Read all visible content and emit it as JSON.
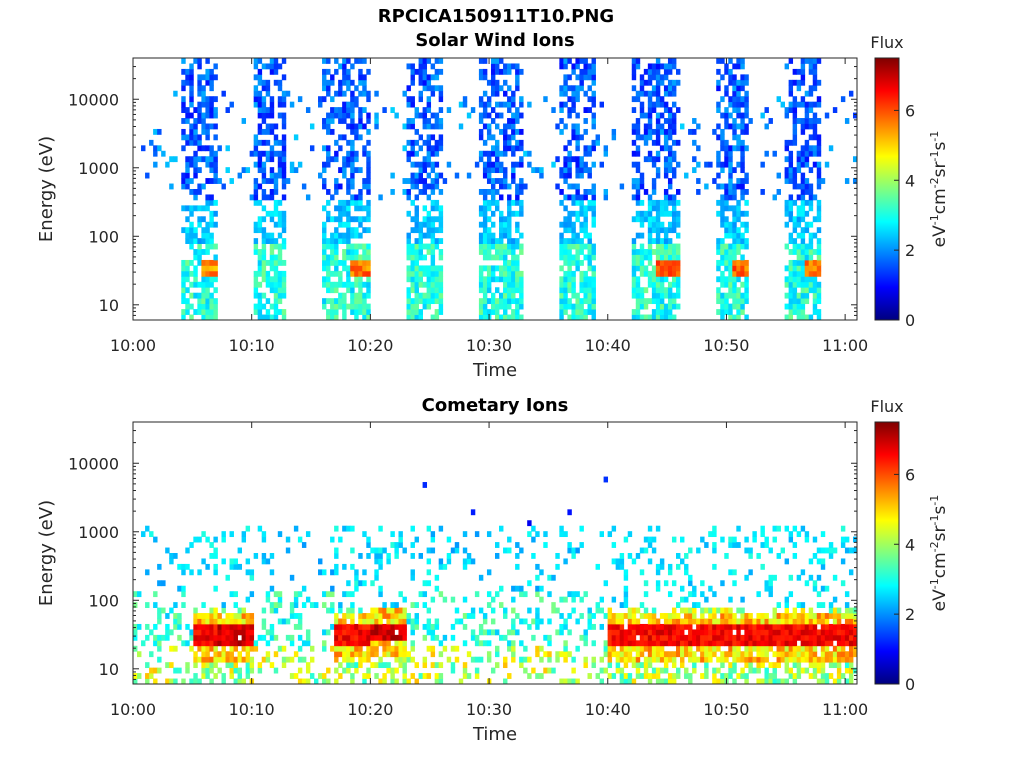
{
  "figure": {
    "title": "RPCICA150911T10.PNG"
  },
  "chart_data": [
    {
      "type": "heatmap",
      "title": "Solar Wind Ions",
      "xlabel": "Time",
      "ylabel": "Energy (eV)",
      "x_ticks": [
        "10:00",
        "10:10",
        "10:20",
        "10:30",
        "10:40",
        "10:50",
        "11:00"
      ],
      "y_ticks": [
        "10",
        "100",
        "1000",
        "10000"
      ],
      "y_scale": "log",
      "ylim": [
        6,
        40000
      ],
      "xlim": [
        "10:00",
        "11:01"
      ],
      "colorbar": {
        "label": "Flux",
        "unit": "eV-1cm-2sr-1s-1",
        "ticks": [
          "0",
          "2",
          "4",
          "6"
        ],
        "range": [
          0,
          7.5
        ],
        "colormap": "jet"
      },
      "features": [
        {
          "time_range": [
            "10:04",
            "10:07"
          ],
          "peak_energy_eV": 35,
          "peak_flux": 6.0
        },
        {
          "time_range": [
            "10:10",
            "10:13"
          ],
          "peak_energy_eV": 20,
          "peak_flux": 3.5
        },
        {
          "time_range": [
            "10:16",
            "10:20"
          ],
          "peak_energy_eV": 35,
          "peak_flux": 6.2
        },
        {
          "time_range": [
            "10:23",
            "10:26"
          ],
          "peak_energy_eV": 20,
          "peak_flux": 3.5
        },
        {
          "time_range": [
            "10:29",
            "10:33"
          ],
          "peak_energy_eV": 20,
          "peak_flux": 3.5
        },
        {
          "time_range": [
            "10:36",
            "10:39"
          ],
          "peak_energy_eV": 20,
          "peak_flux": 3.5
        },
        {
          "time_range": [
            "10:42",
            "10:46"
          ],
          "peak_energy_eV": 35,
          "peak_flux": 6.5
        },
        {
          "time_range": [
            "10:49",
            "10:52"
          ],
          "peak_energy_eV": 35,
          "peak_flux": 6.3
        },
        {
          "time_range": [
            "10:55",
            "10:58"
          ],
          "peak_energy_eV": 35,
          "peak_flux": 6.3
        }
      ]
    },
    {
      "type": "heatmap",
      "title": "Cometary Ions",
      "xlabel": "Time",
      "ylabel": "Energy (eV)",
      "x_ticks": [
        "10:00",
        "10:10",
        "10:20",
        "10:30",
        "10:40",
        "10:50",
        "11:00"
      ],
      "y_ticks": [
        "10",
        "100",
        "1000",
        "10000"
      ],
      "y_scale": "log",
      "ylim": [
        6,
        40000
      ],
      "xlim": [
        "10:00",
        "11:01"
      ],
      "colorbar": {
        "label": "Flux",
        "unit": "eV-1cm-2sr-1s-1",
        "ticks": [
          "0",
          "2",
          "4",
          "6"
        ],
        "range": [
          0,
          7.5
        ],
        "colormap": "jet"
      },
      "features": [
        {
          "time_range": [
            "10:05",
            "10:07"
          ],
          "peak_energy_eV": 30,
          "peak_flux": 7.0
        },
        {
          "time_range": [
            "10:07",
            "10:10"
          ],
          "peak_energy_eV": 30,
          "peak_flux": 7.3
        },
        {
          "time_range": [
            "10:17",
            "10:20"
          ],
          "peak_energy_eV": 30,
          "peak_flux": 7.0
        },
        {
          "time_range": [
            "10:20",
            "10:23"
          ],
          "peak_energy_eV": 35,
          "peak_flux": 7.3
        },
        {
          "time_range": [
            "10:40",
            "10:43"
          ],
          "peak_energy_eV": 30,
          "peak_flux": 7.0
        },
        {
          "time_range": [
            "10:43",
            "10:46"
          ],
          "peak_energy_eV": 30,
          "peak_flux": 7.0
        },
        {
          "time_range": [
            "10:46",
            "10:49"
          ],
          "peak_energy_eV": 30,
          "peak_flux": 7.0
        },
        {
          "time_range": [
            "10:49",
            "10:52"
          ],
          "peak_energy_eV": 30,
          "peak_flux": 7.0
        },
        {
          "time_range": [
            "10:52",
            "10:55"
          ],
          "peak_energy_eV": 30,
          "peak_flux": 7.0
        },
        {
          "time_range": [
            "10:55",
            "10:58"
          ],
          "peak_energy_eV": 30,
          "peak_flux": 7.0
        },
        {
          "time_range": [
            "10:58",
            "11:01"
          ],
          "peak_energy_eV": 30,
          "peak_flux": 7.0
        }
      ]
    }
  ]
}
